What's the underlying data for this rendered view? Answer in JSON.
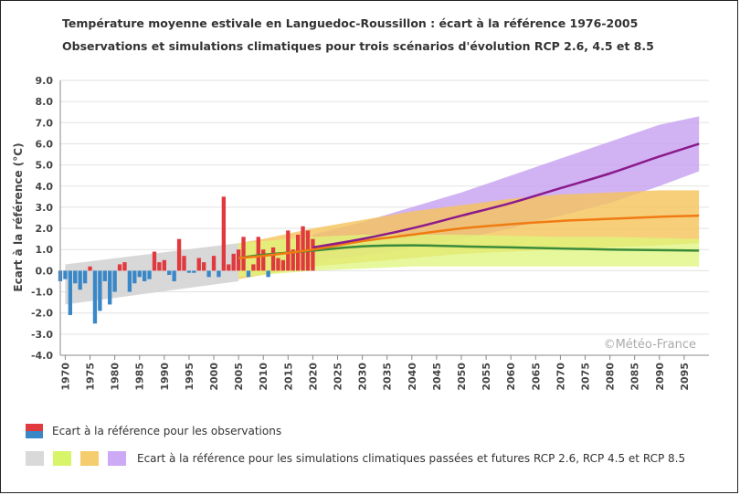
{
  "chart_data": {
    "type": "bar",
    "title": "Température moyenne estivale en Languedoc-Roussillon : écart à la référence 1976-2005",
    "subtitle": "Observations et simulations climatiques pour trois scénarios d'évolution RCP 2.6, 4.5 et 8.5",
    "ylabel": "Ecart à la référence (°C)",
    "xlabel": "",
    "ylim": [
      -4.0,
      9.0
    ],
    "xlim": [
      1969,
      2100
    ],
    "yticks": [
      "-4.0",
      "-3.0",
      "-2.0",
      "-1.0",
      "0.0",
      "1.0",
      "2.0",
      "3.0",
      "4.0",
      "5.0",
      "6.0",
      "7.0",
      "8.0",
      "9.0"
    ],
    "xticks": [
      "1970",
      "1975",
      "1980",
      "1985",
      "1990",
      "1995",
      "2000",
      "2005",
      "2010",
      "2015",
      "2020",
      "2025",
      "2030",
      "2035",
      "2040",
      "2045",
      "2050",
      "2055",
      "2060",
      "2065",
      "2070",
      "2075",
      "2080",
      "2085",
      "2090",
      "2095"
    ],
    "grid": true,
    "watermark": "©Météo-France",
    "observations": {
      "years": [
        1969,
        1970,
        1971,
        1972,
        1973,
        1974,
        1975,
        1976,
        1977,
        1978,
        1979,
        1980,
        1981,
        1982,
        1983,
        1984,
        1985,
        1986,
        1987,
        1988,
        1989,
        1990,
        1991,
        1992,
        1993,
        1994,
        1995,
        1996,
        1997,
        1998,
        1999,
        2000,
        2001,
        2002,
        2003,
        2004,
        2005,
        2006,
        2007,
        2008,
        2009,
        2010,
        2011,
        2012,
        2013,
        2014,
        2015,
        2016,
        2017,
        2018,
        2019,
        2020
      ],
      "values": [
        -0.5,
        -0.4,
        -2.1,
        -0.6,
        -0.9,
        -0.6,
        0.2,
        -2.5,
        -1.9,
        -0.5,
        -1.6,
        -1.0,
        0.3,
        0.4,
        -1.0,
        -0.6,
        -0.3,
        -0.5,
        -0.4,
        0.9,
        0.4,
        0.5,
        -0.2,
        -0.5,
        1.5,
        0.7,
        -0.1,
        -0.1,
        0.6,
        0.4,
        -0.3,
        0.7,
        -0.3,
        3.5,
        0.3,
        0.8,
        1.0,
        1.6,
        -0.3,
        0.3,
        1.6,
        1.0,
        -0.3,
        1.1,
        0.6,
        0.5,
        1.9,
        1.0,
        1.7,
        2.1,
        1.9,
        1.5
      ],
      "positive_color": "#e0393e",
      "negative_color": "#3a87c8"
    },
    "series": [
      {
        "name": "RCP 8.5",
        "x": [
          2020,
          2030,
          2040,
          2050,
          2060,
          2070,
          2080,
          2090,
          2098
        ],
        "median": [
          1.1,
          1.5,
          2.0,
          2.6,
          3.2,
          3.9,
          4.6,
          5.4,
          6.0
        ],
        "low": [
          0.5,
          0.7,
          1.1,
          1.5,
          2.0,
          2.6,
          3.2,
          4.0,
          4.7
        ],
        "high": [
          1.7,
          2.3,
          3.0,
          3.7,
          4.5,
          5.3,
          6.1,
          6.9,
          7.3
        ],
        "line_color": "#8b1a8b",
        "band_color": "#c9a6f2"
      },
      {
        "name": "RCP 4.5",
        "x": [
          2005,
          2010,
          2020,
          2030,
          2040,
          2050,
          2060,
          2070,
          2080,
          2090,
          2098
        ],
        "median": [
          0.6,
          0.7,
          1.0,
          1.4,
          1.7,
          2.0,
          2.2,
          2.35,
          2.45,
          2.55,
          2.6
        ],
        "low": [
          -0.4,
          -0.2,
          0.2,
          0.4,
          0.6,
          0.8,
          0.9,
          1.0,
          1.1,
          1.2,
          1.3
        ],
        "high": [
          1.3,
          1.5,
          2.0,
          2.4,
          2.8,
          3.1,
          3.4,
          3.6,
          3.7,
          3.8,
          3.8
        ],
        "line_color": "#f07b12",
        "band_color": "#f5c35a"
      },
      {
        "name": "RCP 2.6",
        "x": [
          2005,
          2010,
          2020,
          2030,
          2040,
          2050,
          2060,
          2070,
          2080,
          2090,
          2098
        ],
        "median": [
          0.6,
          0.75,
          0.95,
          1.15,
          1.2,
          1.15,
          1.1,
          1.05,
          1.0,
          0.97,
          0.95
        ],
        "low": [
          -0.3,
          -0.2,
          0.0,
          0.1,
          0.2,
          0.2,
          0.2,
          0.2,
          0.2,
          0.2,
          0.2
        ],
        "high": [
          1.3,
          1.4,
          1.6,
          1.7,
          1.7,
          1.7,
          1.65,
          1.6,
          1.6,
          1.55,
          1.5
        ],
        "line_color": "#3a8a3a",
        "band_color": "#ddf57a"
      },
      {
        "name": "Historique",
        "x": [
          1970,
          2005
        ],
        "low": [
          -1.6,
          -0.5
        ],
        "high": [
          0.3,
          1.3
        ],
        "band_color": "#d4d4d4"
      }
    ],
    "legend": {
      "observations_label": "Ecart à la référence pour les observations",
      "simulations_label": "Ecart à la référence pour les simulations climatiques passées et futures RCP 2.6, RCP 4.5 et RCP 8.5",
      "simulation_swatches": [
        "#d9d9d9",
        "#d8f56a",
        "#f5cc6e",
        "#cdaaf5"
      ]
    }
  }
}
